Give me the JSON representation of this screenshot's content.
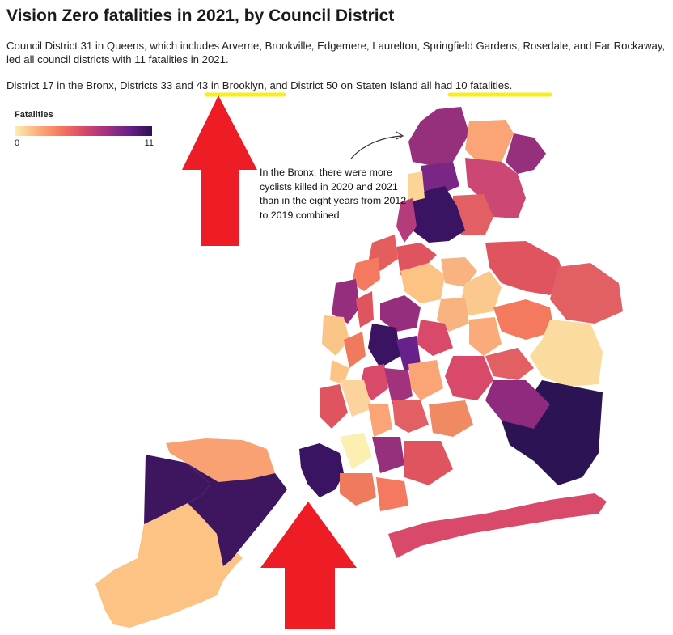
{
  "title": "Vision Zero fatalities in 2021, by Council District",
  "description_1": "Council District 31 in Queens, which includes Arverne, Brookville, Edgemere, Laurelton, Springfield Gardens, Rosedale, and Far Rockaway, led all council districts with 11 fatalities in 2021.",
  "description_2_parts": [
    "District 17 in the Bronx, Districts 33 and ",
    "43 in Brooklyn",
    ", and District 50 on Staten Island ",
    "all had 10 fatalities",
    "."
  ],
  "legend": {
    "title": "Fatalities",
    "min_label": "0",
    "max_label": "11",
    "min": 0,
    "max": 11
  },
  "annotation": "In the Bronx, there were more cyclists killed in 2020 and 2021 than in the eight years from 2012 to 2019 combined",
  "colors": {
    "highlight": "#f8ee1f",
    "arrow": "#ee1c25",
    "scale": [
      "#fcefb2",
      "#fcb07a",
      "#f4795e",
      "#d94a6a",
      "#a2327e",
      "#68208a",
      "#2c1353"
    ]
  }
}
